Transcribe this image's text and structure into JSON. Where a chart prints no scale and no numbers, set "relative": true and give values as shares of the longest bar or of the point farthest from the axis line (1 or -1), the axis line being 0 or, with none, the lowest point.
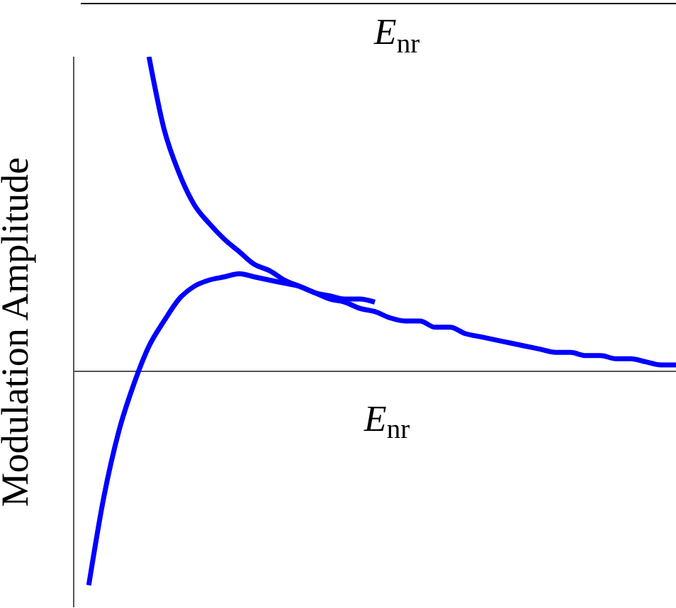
{
  "chart_data": [
    {
      "type": "other",
      "xlabel": "E$_{nr}$"
    },
    {
      "type": "line",
      "relative": true,
      "xlabel": "E$_{nr}$",
      "ylabel": "Modulation Amplitude",
      "legend": false,
      "grid": false,
      "marker": "none",
      "categories": [
        null,
        null,
        null,
        null,
        null,
        null,
        null,
        null,
        null,
        null,
        null,
        null,
        null,
        null,
        null,
        null,
        null,
        null,
        null,
        null,
        null,
        null,
        null,
        null,
        null,
        null,
        null,
        null,
        null,
        null,
        null,
        null,
        null,
        null,
        null,
        null,
        null,
        null,
        null,
        null,
        null
      ],
      "series": [
        {
          "color": "#0000ff",
          "values": [
            null,
            null,
            null,
            null,
            null,
            1,
            0.77,
            0.63,
            0.53,
            0.47,
            0.42,
            0.38,
            0.34,
            0.32,
            0.29,
            0.27,
            0.25,
            0.23,
            0.22,
            0.2,
            0.19,
            0.17,
            0.16,
            0.16,
            0.14,
            0.14,
            0.12,
            0.11,
            0.1,
            0.09,
            0.08,
            0.07,
            0.06,
            0.06,
            0.05,
            0.05,
            0.04,
            0.04,
            0.03,
            0.02,
            0.02
          ]
        },
        {
          "color": "#0000ff",
          "values": [
            null,
            -0.68,
            -0.4,
            -0.19,
            -0.04,
            0.08,
            0.16,
            0.23,
            0.27,
            0.29,
            0.3,
            0.31,
            0.3,
            0.29,
            0.28,
            0.27,
            0.25,
            0.24,
            0.23,
            0.23,
            0.22,
            null,
            null,
            null,
            null,
            null,
            null,
            null,
            null,
            null,
            null,
            null,
            null,
            null,
            null,
            null,
            null,
            null,
            null,
            null,
            null
          ]
        }
      ]
    }
  ]
}
